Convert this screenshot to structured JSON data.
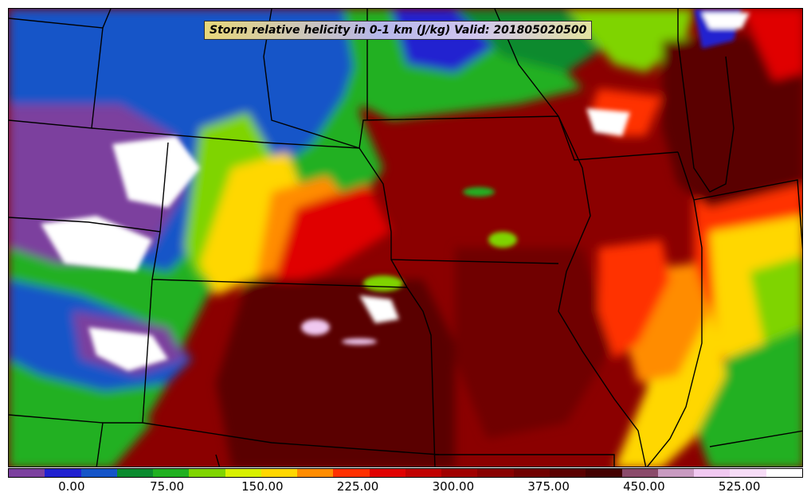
{
  "title": "Storm relative helicity in 0-1 km (J/kg) Valid: 201805020500",
  "colorbar": {
    "colors": [
      "#7b3f9e",
      "#2020d0",
      "#1454c8",
      "#0a8a2e",
      "#20b020",
      "#7fd400",
      "#d8f000",
      "#ffd700",
      "#ff8c00",
      "#ff3000",
      "#e00000",
      "#c00000",
      "#a00000",
      "#880000",
      "#700000",
      "#5a0000",
      "#420000",
      "#8a4a6a",
      "#c89ac0",
      "#f0c8f0",
      "#f6dcf6",
      "#ffffff"
    ],
    "ticks": [
      {
        "label": "0.00",
        "value": 0
      },
      {
        "label": "75.00",
        "value": 75
      },
      {
        "label": "150.00",
        "value": 150
      },
      {
        "label": "225.00",
        "value": 225
      },
      {
        "label": "300.00",
        "value": 300
      },
      {
        "label": "375.00",
        "value": 375
      },
      {
        "label": "450.00",
        "value": 450
      },
      {
        "label": "525.00",
        "value": 525
      }
    ],
    "range": [
      -50,
      575
    ]
  }
}
